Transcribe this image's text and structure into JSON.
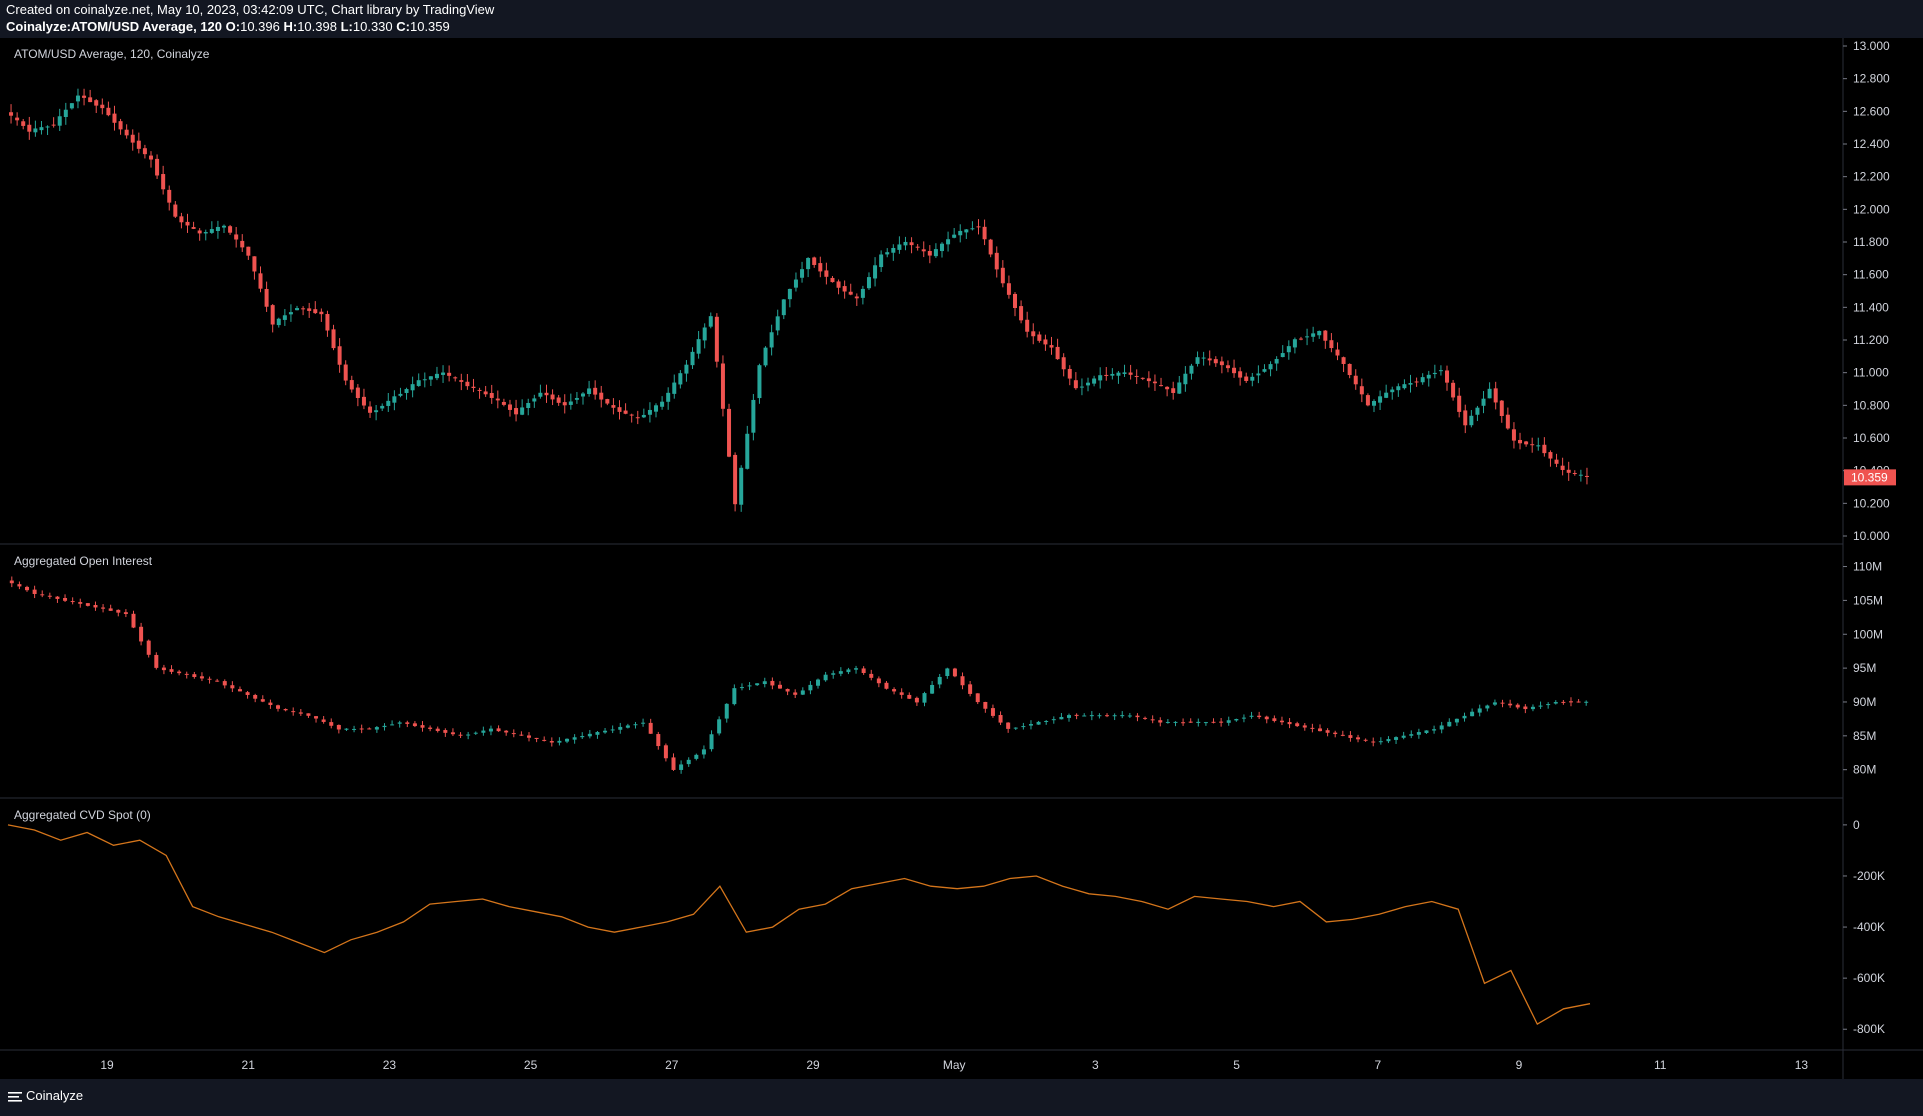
{
  "header": {
    "created_line": "Created on coinalyze.net, May 10, 2023, 03:42:09 UTC, Chart library by TradingView",
    "symbol_line": "Coinalyze:ATOM/USD Average, 120",
    "ohlc": {
      "o_label": "O:",
      "o": "10.396",
      "h_label": "H:",
      "h": "10.398",
      "l_label": "L:",
      "l": "10.330",
      "c_label": "C:",
      "c": "10.359"
    }
  },
  "footer": {
    "brand": "Coinalyze",
    "logo_icon": "coinalyze-logo-icon"
  },
  "colors": {
    "up": "#26a69a",
    "down": "#ef5350",
    "cvd_line": "#d4751b",
    "price_tag": "#ef5350",
    "grid": "#2a2e39"
  },
  "chart_data": [
    {
      "type": "candlestick",
      "title": "ATOM/USD Average, 120, Coinalyze",
      "x_ticks": [
        "19",
        "21",
        "23",
        "25",
        "27",
        "29",
        "May",
        "3",
        "5",
        "7",
        "9",
        "11",
        "13"
      ],
      "y_ticks": [
        "13.000",
        "12.800",
        "12.600",
        "12.400",
        "12.200",
        "12.000",
        "11.800",
        "11.600",
        "11.400",
        "11.200",
        "11.000",
        "10.800",
        "10.600",
        "10.400",
        "10.200",
        "10.000"
      ],
      "ylim": [
        10.0,
        13.0
      ],
      "last_price_label": "10.359",
      "series_close_approx": [
        12.6,
        12.48,
        12.52,
        12.7,
        12.62,
        12.45,
        12.3,
        11.95,
        11.85,
        11.9,
        11.72,
        11.3,
        11.4,
        11.36,
        10.95,
        10.75,
        10.85,
        10.95,
        11.0,
        10.92,
        10.85,
        10.75,
        10.88,
        10.8,
        10.9,
        10.78,
        10.72,
        10.82,
        11.05,
        11.35,
        10.2,
        11.05,
        11.45,
        11.7,
        11.55,
        11.45,
        11.72,
        11.8,
        11.72,
        11.85,
        11.9,
        11.55,
        11.25,
        11.15,
        10.9,
        10.98,
        11.0,
        10.95,
        10.88,
        11.1,
        11.05,
        10.95,
        11.05,
        11.2,
        11.25,
        11.05,
        10.8,
        10.9,
        10.95,
        11.02,
        10.68,
        10.9,
        10.58,
        10.55,
        10.4,
        10.36
      ]
    },
    {
      "type": "candlestick",
      "title": "Aggregated Open Interest",
      "y_ticks": [
        "110M",
        "105M",
        "100M",
        "95M",
        "90M",
        "85M",
        "80M"
      ],
      "ylim": [
        77,
        112
      ],
      "series_close_approx": [
        108,
        106,
        105,
        104,
        103,
        95,
        94,
        93,
        91,
        89,
        88,
        86,
        86,
        87,
        86,
        85,
        86,
        85,
        84,
        85,
        86,
        87,
        80,
        83,
        92,
        93,
        91,
        94,
        95,
        92,
        90,
        95,
        90,
        86,
        87,
        88,
        88,
        88,
        87,
        87,
        87,
        88,
        87,
        86,
        85,
        84,
        85,
        86,
        88,
        90,
        89,
        90,
        90
      ]
    },
    {
      "type": "line",
      "title": "Aggregated CVD Spot (0)",
      "y_ticks": [
        "0",
        "-200K",
        "-400K",
        "-600K",
        "-800K"
      ],
      "ylim": [
        -850,
        70
      ],
      "y_unit": "K",
      "series_approx": [
        0,
        -20,
        -60,
        -30,
        -80,
        -60,
        -120,
        -320,
        -360,
        -390,
        -420,
        -460,
        -500,
        -450,
        -420,
        -380,
        -310,
        -300,
        -290,
        -320,
        -340,
        -360,
        -400,
        -420,
        -400,
        -380,
        -350,
        -240,
        -420,
        -400,
        -330,
        -310,
        -250,
        -230,
        -210,
        -240,
        -250,
        -240,
        -210,
        -200,
        -240,
        -270,
        -280,
        -300,
        -330,
        -280,
        -290,
        -300,
        -320,
        -300,
        -380,
        -370,
        -350,
        -320,
        -300,
        -330,
        -620,
        -570,
        -780,
        -720,
        -700
      ]
    }
  ]
}
